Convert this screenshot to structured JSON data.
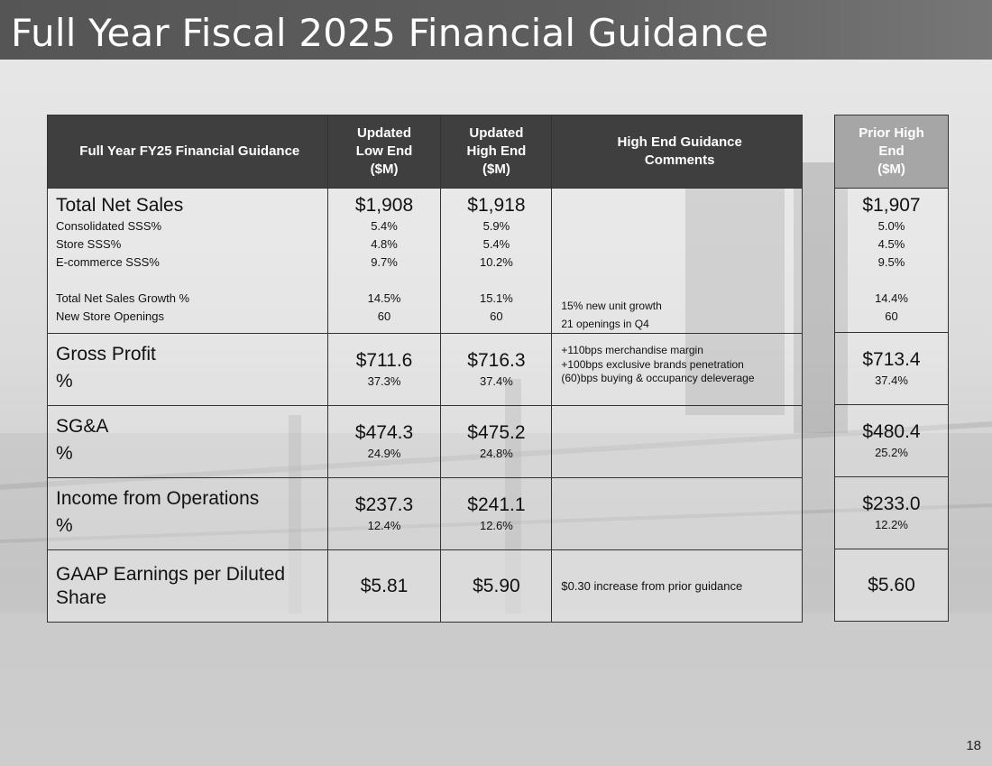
{
  "title": "Full Year Fiscal 2025 Financial Guidance",
  "page_number": "18",
  "headers": {
    "label": "Full Year FY25 Financial Guidance",
    "low": [
      "Updated",
      "Low End",
      "($M)"
    ],
    "high": [
      "Updated",
      "High End",
      "($M)"
    ],
    "comments": [
      "High End Guidance",
      "Comments"
    ],
    "prior": [
      "Prior High",
      "End",
      "($M)"
    ]
  },
  "sales": {
    "label": "Total Net Sales",
    "low": "$1,908",
    "high": "$1,918",
    "prior": "$1,907",
    "subrows": [
      {
        "label": "Consolidated SSS%",
        "low": "5.4%",
        "high": "5.9%",
        "prior": "5.0%"
      },
      {
        "label": "Store SSS%",
        "low": "4.8%",
        "high": "5.4%",
        "prior": "4.5%"
      },
      {
        "label": "E-commerce SSS%",
        "low": "9.7%",
        "high": "10.2%",
        "prior": "9.5%"
      }
    ],
    "subrows2": [
      {
        "label": "Total Net Sales Growth %",
        "low": "14.5%",
        "high": "15.1%",
        "prior": "14.4%",
        "comment": "15% new unit growth"
      },
      {
        "label": "New Store Openings",
        "low": "60",
        "high": "60",
        "prior": "60",
        "comment": "21 openings in Q4"
      }
    ]
  },
  "gross_profit": {
    "label": "Gross Profit",
    "pct_label": "%",
    "low": "$711.6",
    "low_pct": "37.3%",
    "high": "$716.3",
    "high_pct": "37.4%",
    "prior": "$713.4",
    "prior_pct": "37.4%",
    "comments": [
      "+110bps merchandise margin",
      "+100bps exclusive brands penetration",
      "(60)bps buying & occupancy deleverage"
    ]
  },
  "sga": {
    "label": "SG&A",
    "pct_label": "%",
    "low": "$474.3",
    "low_pct": "24.9%",
    "high": "$475.2",
    "high_pct": "24.8%",
    "prior": "$480.4",
    "prior_pct": "25.2%"
  },
  "ifo": {
    "label": "Income from Operations",
    "pct_label": "%",
    "low": "$237.3",
    "low_pct": "12.4%",
    "high": "$241.1",
    "high_pct": "12.6%",
    "prior": "$233.0",
    "prior_pct": "12.2%"
  },
  "eps": {
    "label": [
      "GAAP Earnings per Diluted",
      "Share"
    ],
    "low": "$5.81",
    "high": "$5.90",
    "prior": "$5.60",
    "comment": "$0.30 increase from prior guidance"
  }
}
